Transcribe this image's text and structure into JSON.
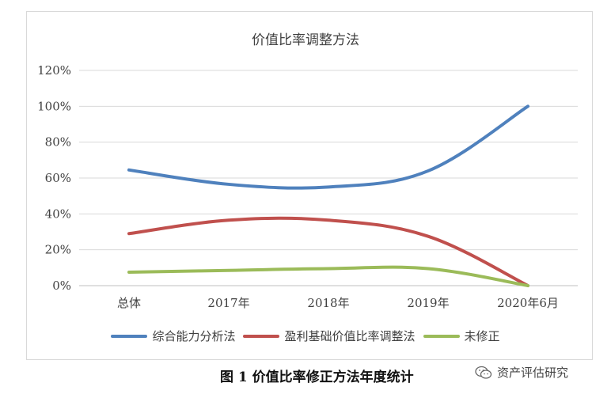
{
  "chart_data": {
    "type": "line",
    "title": "价值比率调整方法",
    "categories": [
      "总体",
      "2017年",
      "2018年",
      "2019年",
      "2020年6月"
    ],
    "ylim": [
      0,
      120
    ],
    "yticks": [
      "0%",
      "20%",
      "40%",
      "60%",
      "80%",
      "100%",
      "120%"
    ],
    "grid": true,
    "legend_position": "bottom",
    "series": [
      {
        "name": "综合能力分析法",
        "values": [
          64.5,
          56.5,
          55,
          64,
          100
        ],
        "color": "#4f81bd"
      },
      {
        "name": "盈利基础价值比率调整法",
        "values": [
          29,
          36.5,
          36.5,
          27.5,
          0
        ],
        "color": "#c0504d"
      },
      {
        "name": "未修正",
        "values": [
          7.5,
          8.5,
          9.5,
          9.5,
          0
        ],
        "color": "#9bbb59"
      }
    ]
  },
  "caption": "图 1  价值比率修正方法年度统计",
  "watermark": {
    "text": "资产评估研究",
    "icon": "wechat-icon"
  }
}
